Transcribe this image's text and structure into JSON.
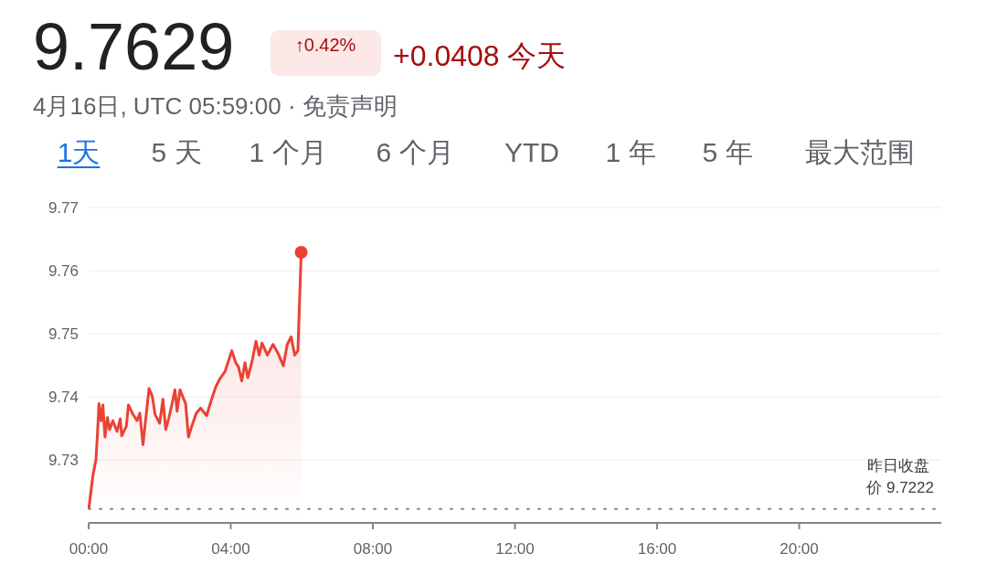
{
  "chart_data": {
    "type": "area",
    "title": "9.7629",
    "subtitle": "4月16日, UTC 05:59:00 · 免责声明",
    "annotations": [
      "↑0.42%",
      "+0.0408 今天",
      "1天",
      "5 天",
      "1 个月",
      "6 个月",
      "YTD",
      "1 年",
      "5 年",
      "最大范围"
    ],
    "series": [
      {
        "color": "#e94235",
        "x": [
          0.01,
          0.12,
          0.205,
          0.25,
          0.29,
          0.35,
          0.4,
          0.46,
          0.53,
          0.59,
          0.68,
          0.8,
          0.89,
          0.93,
          1.06,
          1.12,
          1.23,
          1.36,
          1.44,
          1.53,
          1.62,
          1.7,
          1.79,
          1.87,
          2.0,
          2.09,
          2.17,
          2.26,
          2.34,
          2.43,
          2.49,
          2.57,
          2.73,
          2.81,
          2.9,
          3.03,
          3.15,
          3.32,
          3.45,
          3.58,
          3.71,
          3.84,
          3.92,
          4.03,
          4.14,
          4.22,
          4.31,
          4.4,
          4.48,
          4.61,
          4.71,
          4.8,
          4.88,
          5.03,
          5.19,
          5.33,
          5.48,
          5.59,
          5.7,
          5.8,
          5.89,
          5.983
        ],
        "values": [
          9.7225,
          9.7275,
          9.73,
          9.7343,
          9.7389,
          9.7362,
          9.7387,
          9.7336,
          9.7367,
          9.7348,
          9.7362,
          9.7345,
          9.7365,
          9.7338,
          9.7353,
          9.7387,
          9.7374,
          9.7362,
          9.7374,
          9.7324,
          9.7372,
          9.7413,
          9.7401,
          9.7372,
          9.7358,
          9.7396,
          9.7348,
          9.7367,
          9.7387,
          9.7411,
          9.7377,
          9.7411,
          9.7389,
          9.7336,
          9.7353,
          9.7374,
          9.7382,
          9.737,
          9.7394,
          9.7416,
          9.743,
          9.744,
          9.7454,
          9.7473,
          9.7454,
          9.7447,
          9.7425,
          9.7454,
          9.743,
          9.7459,
          9.7488,
          9.7466,
          9.7485,
          9.7466,
          9.7483,
          9.7469,
          9.7449,
          9.7483,
          9.7495,
          9.7466,
          9.7473,
          9.7629
        ]
      },
      {
        "type": "scatter",
        "marker": "circle",
        "color": "#e94235",
        "x": [
          5.983
        ],
        "values": [
          9.7629
        ]
      }
    ],
    "xlim": [
      0,
      24
    ],
    "xticks": [
      {
        "value": 0,
        "label": "00:00"
      },
      {
        "value": 4,
        "label": "04:00"
      },
      {
        "value": 8,
        "label": "08:00"
      },
      {
        "value": 12,
        "label": "12:00"
      },
      {
        "value": 16,
        "label": "16:00"
      },
      {
        "value": 20,
        "label": "20:00"
      }
    ],
    "ylim": [
      9.72,
      9.77
    ],
    "yticks": [
      9.73,
      9.74,
      9.75,
      9.76,
      9.77
    ],
    "grid": "y",
    "ref_lines": [
      {
        "axis": "y",
        "value": 9.7222,
        "label": "昨日收盘价 9.7222",
        "color": "#80868b",
        "line_style": "dotted"
      }
    ]
  }
}
